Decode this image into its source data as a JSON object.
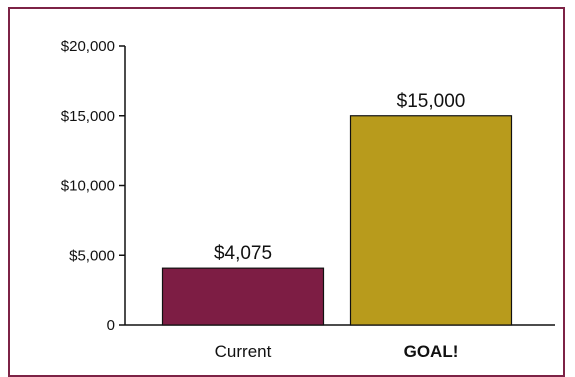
{
  "chart_data": {
    "type": "bar",
    "title": "",
    "xlabel": "",
    "ylabel": "",
    "categories": [
      "Current",
      "GOAL!"
    ],
    "values": [
      4075,
      15000
    ],
    "value_labels": [
      "$4,075",
      "$15,000"
    ],
    "ylim": [
      0,
      20000
    ],
    "yticks": [
      0,
      5000,
      10000,
      15000,
      20000
    ],
    "ytick_labels": [
      "0",
      "$5,000",
      "$10,000",
      "$15,000",
      "$20,000"
    ],
    "grid": false,
    "legend": "none",
    "colors": [
      "#7d1d44",
      "#b89b1c"
    ],
    "frame_color": "#7d2346"
  }
}
